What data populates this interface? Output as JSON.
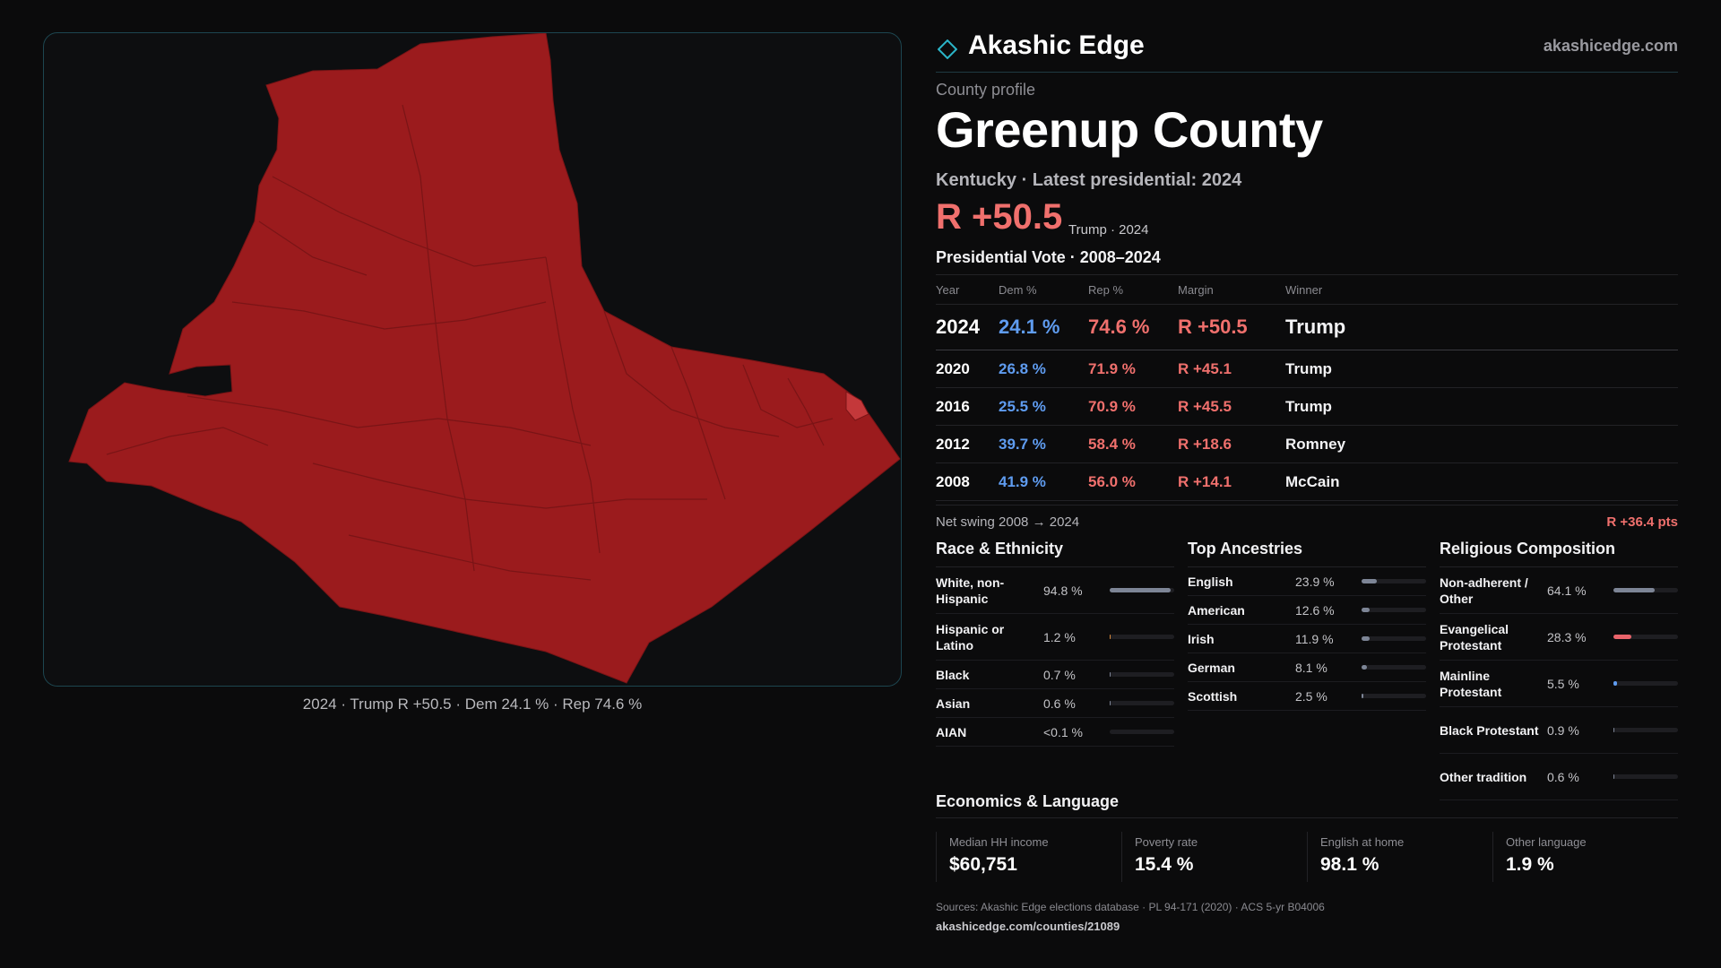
{
  "brand": {
    "name": "Akashic Edge",
    "url": "akashicedge.com"
  },
  "profile": {
    "kicker": "County profile",
    "title": "Greenup County",
    "subtitle": "Kentucky · Latest presidential: 2024",
    "headline_margin": "R +50.5",
    "headline_note": "Trump · 2024"
  },
  "map": {
    "caption": "2024 · Trump R +50.5 · Dem 24.1 % · Rep 74.6 %",
    "fill_color": "#9b1b1d",
    "stroke_color": "#7a1416"
  },
  "vote": {
    "title": "Presidential Vote · 2008–2024",
    "headers": {
      "year": "Year",
      "dem": "Dem %",
      "rep": "Rep %",
      "margin": "Margin",
      "winner": "Winner"
    },
    "rows": [
      {
        "year": "2024",
        "dem": "24.1 %",
        "rep": "74.6 %",
        "margin": "R +50.5",
        "winner": "Trump"
      },
      {
        "year": "2020",
        "dem": "26.8 %",
        "rep": "71.9 %",
        "margin": "R +45.1",
        "winner": "Trump"
      },
      {
        "year": "2016",
        "dem": "25.5 %",
        "rep": "70.9 %",
        "margin": "R +45.5",
        "winner": "Trump"
      },
      {
        "year": "2012",
        "dem": "39.7 %",
        "rep": "58.4 %",
        "margin": "R +18.6",
        "winner": "Romney"
      },
      {
        "year": "2008",
        "dem": "41.9 %",
        "rep": "56.0 %",
        "margin": "R +14.1",
        "winner": "McCain"
      }
    ],
    "swing_label": "Net swing 2008 → 2024",
    "swing_value": "R +36.4 pts"
  },
  "race": {
    "title": "Race & Ethnicity",
    "items": [
      {
        "label": "White, non-Hispanic",
        "value": "94.8 %",
        "share": 0.948,
        "color": "grey"
      },
      {
        "label": "Hispanic or Latino",
        "value": "1.2 %",
        "share": 0.012,
        "color": "orange"
      },
      {
        "label": "Black",
        "value": "0.7 %",
        "share": 0.007,
        "color": "grey"
      },
      {
        "label": "Asian",
        "value": "0.6 %",
        "share": 0.006,
        "color": "grey"
      },
      {
        "label": "AIAN",
        "value": "<0.1 %",
        "share": 0.0,
        "color": "grey"
      }
    ]
  },
  "ancestry": {
    "title": "Top Ancestries",
    "items": [
      {
        "label": "English",
        "value": "23.9 %",
        "share": 0.239
      },
      {
        "label": "American",
        "value": "12.6 %",
        "share": 0.126
      },
      {
        "label": "Irish",
        "value": "11.9 %",
        "share": 0.119
      },
      {
        "label": "German",
        "value": "8.1 %",
        "share": 0.081
      },
      {
        "label": "Scottish",
        "value": "2.5 %",
        "share": 0.025
      }
    ]
  },
  "religion": {
    "title": "Religious Composition",
    "items": [
      {
        "label": "Non-adherent / Other",
        "value": "64.1 %",
        "share": 0.641,
        "color": "grey"
      },
      {
        "label": "Evangelical Protestant",
        "value": "28.3 %",
        "share": 0.283,
        "color": "red"
      },
      {
        "label": "Mainline Protestant",
        "value": "5.5 %",
        "share": 0.055,
        "color": "blue"
      },
      {
        "label": "Black Protestant",
        "value": "0.9 %",
        "share": 0.009,
        "color": "grey"
      },
      {
        "label": "Other tradition",
        "value": "0.6 %",
        "share": 0.006,
        "color": "grey"
      }
    ]
  },
  "economics": {
    "title": "Economics & Language",
    "items": [
      {
        "label": "Median HH income",
        "value": "$60,751"
      },
      {
        "label": "Poverty rate",
        "value": "15.4 %"
      },
      {
        "label": "English at home",
        "value": "98.1 %"
      },
      {
        "label": "Other language",
        "value": "1.9 %"
      }
    ]
  },
  "footer": {
    "sources": "Sources: Akashic Edge elections database · PL 94-171 (2020) · ACS 5-yr B04006",
    "link": "akashicedge.com/counties/21089"
  }
}
